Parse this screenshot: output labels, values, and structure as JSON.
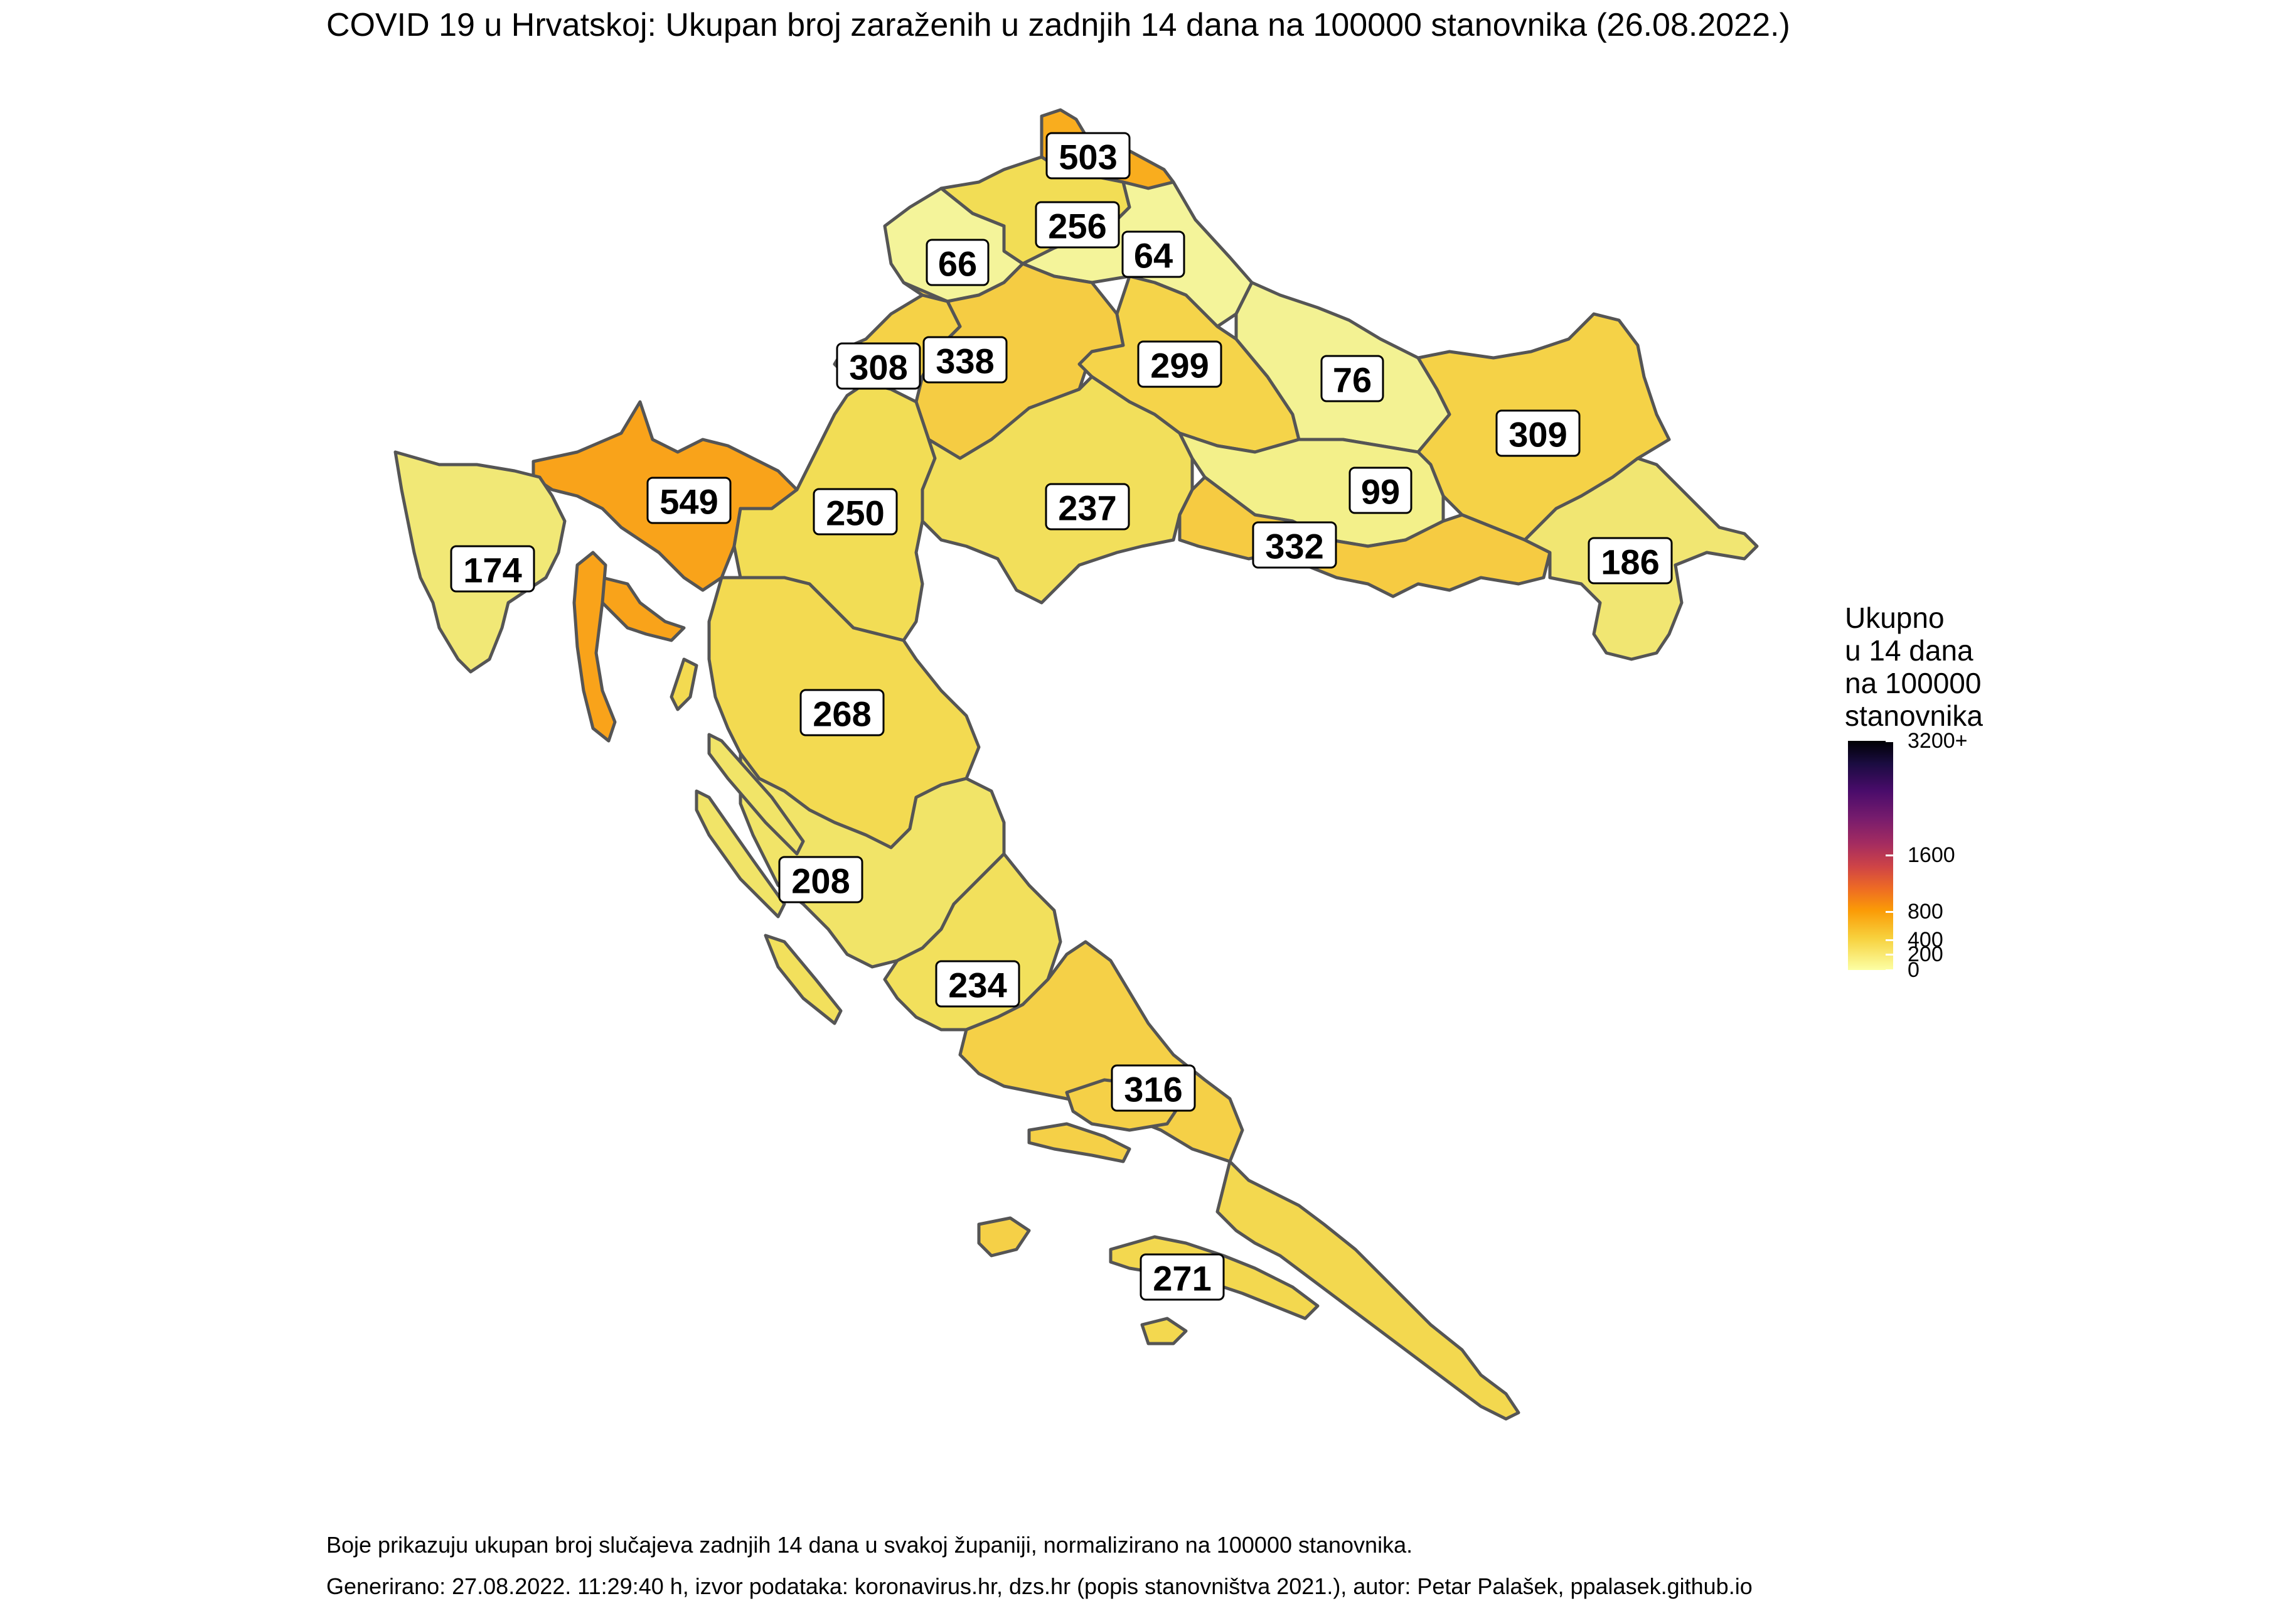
{
  "title": "COVID 19 u Hrvatskoj: Ukupan broj zaraženih u zadnjih 14 dana na 100000 stanovnika (26.08.2022.)",
  "legend": {
    "title_lines": [
      "Ukupno",
      "u 14 dana",
      "na 100000",
      "stanovnika"
    ],
    "ticks": [
      {
        "label": "3200+",
        "value": 3200
      },
      {
        "label": "1600",
        "value": 1600
      },
      {
        "label": "800",
        "value": 800
      },
      {
        "label": "400",
        "value": 400
      },
      {
        "label": "200",
        "value": 200
      },
      {
        "label": "0",
        "value": 0
      }
    ],
    "scale": "inferno (reversed), non-linear"
  },
  "counties": [
    {
      "label": "503",
      "value": 503,
      "color": "#f9ad1e"
    },
    {
      "label": "256",
      "value": 256,
      "color": "#f2dd55"
    },
    {
      "label": "66",
      "value": 66,
      "color": "#f4f49a"
    },
    {
      "label": "64",
      "value": 64,
      "color": "#f4f49a"
    },
    {
      "label": "308",
      "value": 308,
      "color": "#f5d247"
    },
    {
      "label": "338",
      "value": 338,
      "color": "#f5cc43"
    },
    {
      "label": "299",
      "value": 299,
      "color": "#f5d44a"
    },
    {
      "label": "76",
      "value": 76,
      "color": "#f3f293"
    },
    {
      "label": "309",
      "value": 309,
      "color": "#f5d247"
    },
    {
      "label": "549",
      "value": 549,
      "color": "#f9a31a"
    },
    {
      "label": "174",
      "value": 174,
      "color": "#f1e876"
    },
    {
      "label": "250",
      "value": 250,
      "color": "#f2dd55"
    },
    {
      "label": "237",
      "value": 237,
      "color": "#f2df5b"
    },
    {
      "label": "99",
      "value": 99,
      "color": "#f3f08a"
    },
    {
      "label": "332",
      "value": 332,
      "color": "#f6cb42"
    },
    {
      "label": "186",
      "value": 186,
      "color": "#f1e672"
    },
    {
      "label": "268",
      "value": 268,
      "color": "#f3da51"
    },
    {
      "label": "208",
      "value": 208,
      "color": "#f1e468"
    },
    {
      "label": "234",
      "value": 234,
      "color": "#f2e05c"
    },
    {
      "label": "316",
      "value": 316,
      "color": "#f5d047"
    },
    {
      "label": "271",
      "value": 271,
      "color": "#f3d84f"
    }
  ],
  "footer": {
    "note": "Boje prikazuju ukupan broj slučajeva zadnjih 14 dana u svakoj županiji, normalizirano na 100000 stanovnika.",
    "generated": "Generirano: 27.08.2022. 11:29:40 h, izvor podataka: koronavirus.hr, dzs.hr (popis stanovništva 2021.), autor: Petar Palašek, ppalasek.github.io"
  }
}
